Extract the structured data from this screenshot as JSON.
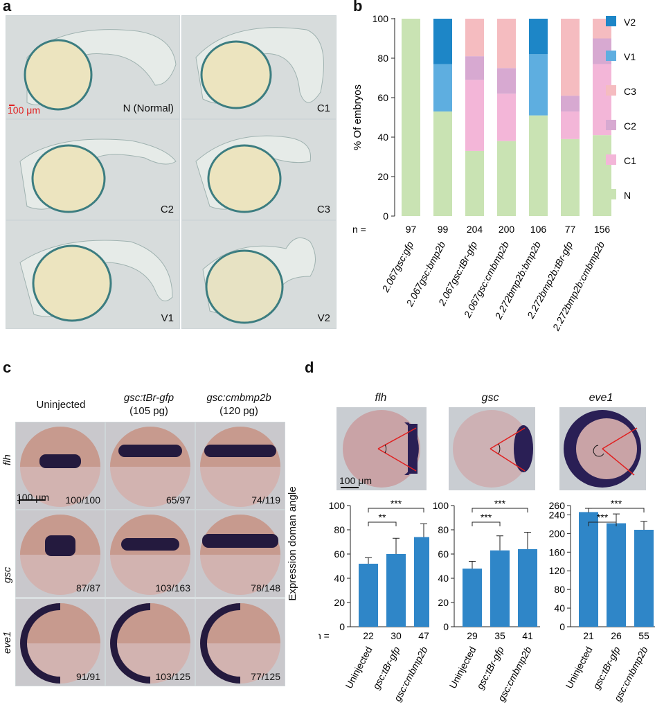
{
  "panels": {
    "a": "a",
    "b": "b",
    "c": "c",
    "d": "d"
  },
  "panel_a": {
    "scale_bar": "100 μm",
    "images": [
      "N (Normal)",
      "C1",
      "C2",
      "C3",
      "V1",
      "V2"
    ]
  },
  "panel_c": {
    "columns": [
      {
        "title": "Uninjected",
        "sub": ""
      },
      {
        "title": "gsc:tBr-gfp",
        "sub": "(105 pg)"
      },
      {
        "title": "gsc:cmbmp2b",
        "sub": "(120 pg)"
      }
    ],
    "rows": [
      "flh",
      "gsc",
      "eve1"
    ],
    "ratios": [
      [
        "100/100",
        "65/97",
        "74/119"
      ],
      [
        "87/87",
        "103/163",
        "78/148"
      ],
      [
        "91/91",
        "103/125",
        "77/125"
      ]
    ],
    "scale_bar": "100 μm"
  },
  "panel_d": {
    "genes": [
      "flh",
      "gsc",
      "eve1"
    ],
    "scale_bar": "100 μm",
    "ylabel": "Expression doman angle",
    "n_prefix": "n ="
  },
  "colors": {
    "N": "#c9e3b3",
    "C1": "#f3b6d8",
    "C2": "#d7a9d1",
    "C3": "#f5bcc0",
    "V1": "#5eaee0",
    "V2": "#1d86c7",
    "bar": "#2f86c8"
  },
  "chart_data": [
    {
      "type": "bar",
      "stacked": true,
      "ylabel": "% Of embryos",
      "ylim": [
        0,
        100
      ],
      "yticks": [
        0,
        20,
        40,
        60,
        80,
        100
      ],
      "n_prefix": "n =",
      "categories": [
        "2.067gsc:gfp",
        "2.067gsc:bmp2b",
        "2.067gsc:tBr-gfp",
        "2.067gsc:cmbmp2b",
        "2.272bmp2b:bmp2b",
        "2.272bmp2b:tBr-gfp",
        "2.272bmp2b:cmbmp2b"
      ],
      "n": [
        "97",
        "99",
        "204",
        "200",
        "106",
        "77",
        "156"
      ],
      "legend_position": "right",
      "series": [
        {
          "name": "N",
          "values": [
            100,
            53,
            33,
            38,
            51,
            39,
            41
          ]
        },
        {
          "name": "C1",
          "values": [
            0,
            0,
            36,
            24,
            0,
            14,
            36
          ]
        },
        {
          "name": "C2",
          "values": [
            0,
            0,
            12,
            13,
            0,
            8,
            13
          ]
        },
        {
          "name": "C3",
          "values": [
            0,
            0,
            19,
            25,
            0,
            39,
            10
          ]
        },
        {
          "name": "V1",
          "values": [
            0,
            24,
            0,
            0,
            31,
            0,
            0
          ]
        },
        {
          "name": "V2",
          "values": [
            0,
            23,
            0,
            0,
            18,
            0,
            0
          ]
        }
      ]
    },
    {
      "type": "bar",
      "gene": "flh",
      "categories": [
        "Uninjected",
        "gsc:tBr-gfp",
        "gsc:cmbmp2b"
      ],
      "values": [
        52,
        60,
        74
      ],
      "errors": [
        5,
        13,
        11
      ],
      "n": [
        "22",
        "30",
        "47"
      ],
      "ylim": [
        0,
        100
      ],
      "yticks": [
        0,
        20,
        40,
        60,
        80,
        100
      ],
      "significance": [
        {
          "pair": [
            0,
            1
          ],
          "label": "**"
        },
        {
          "pair": [
            0,
            2
          ],
          "label": "***"
        }
      ]
    },
    {
      "type": "bar",
      "gene": "gsc",
      "categories": [
        "Uninjected",
        "gsc:tBr-gfp",
        "gsc:cmbmp2b"
      ],
      "values": [
        48,
        63,
        64
      ],
      "errors": [
        6,
        12,
        14
      ],
      "n": [
        "29",
        "35",
        "41"
      ],
      "ylim": [
        0,
        100
      ],
      "yticks": [
        0,
        20,
        40,
        60,
        80,
        100
      ],
      "significance": [
        {
          "pair": [
            0,
            1
          ],
          "label": "***"
        },
        {
          "pair": [
            0,
            2
          ],
          "label": "***"
        }
      ]
    },
    {
      "type": "bar",
      "gene": "eve1",
      "categories": [
        "Uninjected",
        "gsc:tBr-gfp",
        "gsc:cmbmp2b"
      ],
      "values": [
        246,
        222,
        208
      ],
      "errors": [
        8,
        20,
        18
      ],
      "n": [
        "21",
        "26",
        "55"
      ],
      "ylim": [
        0,
        260
      ],
      "yticks": [
        0,
        40,
        80,
        120,
        160,
        200,
        240,
        260
      ],
      "significance": [
        {
          "pair": [
            0,
            1
          ],
          "label": "***"
        },
        {
          "pair": [
            0,
            2
          ],
          "label": "***"
        }
      ]
    }
  ]
}
